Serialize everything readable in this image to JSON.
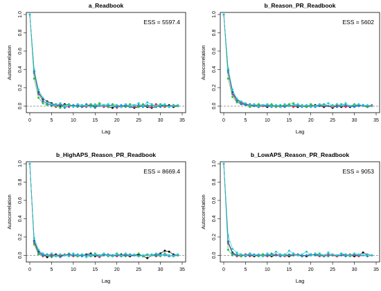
{
  "chart_data": [
    {
      "type": "line",
      "title": "a_Readbook",
      "xlabel": "Lag",
      "ylabel": "Autocorrelation",
      "annotation": "ESS = 5597.4",
      "xlim": [
        0,
        35
      ],
      "ylim": [
        -0.05,
        1.0
      ],
      "x_ticks": [
        0,
        5,
        10,
        15,
        20,
        25,
        30,
        35
      ],
      "y_ticks": [
        0.0,
        0.2,
        0.4,
        0.6,
        0.8,
        1.0
      ],
      "x": [
        0,
        1,
        2,
        3,
        4,
        5,
        6,
        7,
        8,
        9,
        10,
        11,
        12,
        13,
        14,
        15,
        16,
        17,
        18,
        19,
        20,
        21,
        22,
        23,
        24,
        25,
        26,
        27,
        28,
        29,
        30,
        31,
        32,
        33,
        34
      ],
      "series": [
        {
          "color": "#000000",
          "values": [
            1.0,
            0.38,
            0.15,
            0.08,
            0.05,
            0.03,
            0.01,
            0.0,
            0.02,
            0.01,
            0.0,
            0.01,
            -0.01,
            0.0,
            0.01,
            -0.01,
            0.0,
            0.01,
            -0.01,
            -0.02,
            0.0,
            -0.01,
            0.0,
            -0.01,
            -0.02,
            -0.01,
            0.0,
            -0.01,
            -0.02,
            -0.01,
            0.01,
            0.0,
            0.01,
            -0.01,
            0.0
          ]
        },
        {
          "color": "#e8274b",
          "values": [
            1.0,
            0.36,
            0.13,
            0.06,
            0.02,
            0.01,
            -0.01,
            0.02,
            0.0,
            -0.01,
            0.01,
            0.0,
            0.0,
            -0.01,
            0.01,
            0.01,
            0.0,
            -0.01,
            0.0,
            0.01,
            -0.02,
            0.0,
            0.01,
            0.0,
            -0.01,
            0.0,
            0.01,
            0.0,
            -0.01,
            0.02,
            0.0,
            -0.01,
            0.0,
            0.01,
            0.0
          ]
        },
        {
          "color": "#2bc03a",
          "values": [
            1.0,
            0.3,
            0.09,
            0.03,
            0.01,
            0.02,
            0.0,
            -0.02,
            0.01,
            0.02,
            0.0,
            -0.01,
            0.01,
            0.0,
            0.02,
            0.0,
            0.03,
            0.01,
            -0.01,
            0.02,
            0.01,
            0.0,
            -0.01,
            0.02,
            0.01,
            -0.01,
            0.02,
            0.0,
            0.01,
            -0.01,
            0.02,
            0.0,
            -0.01,
            0.01,
            0.0
          ]
        },
        {
          "color": "#2a7fd6",
          "values": [
            1.0,
            0.37,
            0.14,
            0.05,
            0.03,
            0.0,
            0.02,
            0.01,
            -0.02,
            0.0,
            0.01,
            0.0,
            -0.01,
            0.02,
            0.0,
            -0.02,
            0.01,
            0.0,
            0.01,
            0.0,
            -0.01,
            0.01,
            0.0,
            -0.01,
            0.0,
            0.01,
            -0.01,
            0.01,
            0.0,
            0.0,
            -0.01,
            0.01,
            0.0,
            0.0,
            0.01
          ]
        },
        {
          "color": "#22c8d8",
          "values": [
            1.0,
            0.4,
            0.18,
            0.09,
            0.04,
            0.02,
            0.01,
            0.03,
            0.0,
            0.01,
            -0.01,
            0.02,
            0.01,
            0.0,
            -0.01,
            0.02,
            0.0,
            0.01,
            0.02,
            0.0,
            0.01,
            -0.01,
            0.02,
            0.0,
            0.01,
            0.03,
            0.0,
            0.04,
            0.02,
            0.0,
            0.01,
            0.02,
            -0.01,
            0.0,
            0.01
          ]
        }
      ]
    },
    {
      "type": "line",
      "title": "b_Reason_PR_Readbook",
      "xlabel": "Lag",
      "ylabel": "Autocorrelation",
      "annotation": "ESS = 5602",
      "xlim": [
        0,
        35
      ],
      "ylim": [
        -0.05,
        1.0
      ],
      "x_ticks": [
        0,
        5,
        10,
        15,
        20,
        25,
        30,
        35
      ],
      "y_ticks": [
        0.0,
        0.2,
        0.4,
        0.6,
        0.8,
        1.0
      ],
      "x": [
        0,
        1,
        2,
        3,
        4,
        5,
        6,
        7,
        8,
        9,
        10,
        11,
        12,
        13,
        14,
        15,
        16,
        17,
        18,
        19,
        20,
        21,
        22,
        23,
        24,
        25,
        26,
        27,
        28,
        29,
        30,
        31,
        32,
        33,
        34
      ],
      "series": [
        {
          "color": "#000000",
          "values": [
            1.0,
            0.39,
            0.15,
            0.07,
            0.04,
            0.02,
            0.01,
            0.0,
            0.01,
            0.0,
            -0.01,
            0.01,
            0.0,
            -0.01,
            0.0,
            0.01,
            0.0,
            -0.01,
            0.0,
            -0.01,
            0.0,
            0.01,
            0.0,
            -0.01,
            0.0,
            -0.02,
            0.0,
            -0.01,
            0.0,
            -0.01,
            0.0,
            0.01,
            0.0,
            -0.01,
            0.0
          ]
        },
        {
          "color": "#e8274b",
          "values": [
            1.0,
            0.37,
            0.13,
            0.05,
            0.03,
            0.01,
            0.0,
            0.01,
            -0.01,
            0.0,
            0.01,
            0.0,
            -0.01,
            0.0,
            0.01,
            0.0,
            -0.01,
            0.01,
            0.0,
            0.0,
            -0.01,
            0.0,
            0.01,
            0.0,
            0.0,
            -0.01,
            0.01,
            0.0,
            -0.01,
            0.0,
            0.01,
            0.0,
            0.0,
            0.0,
            0.01
          ]
        },
        {
          "color": "#2bc03a",
          "values": [
            1.0,
            0.3,
            0.1,
            0.04,
            0.02,
            0.01,
            -0.01,
            0.0,
            0.02,
            0.01,
            0.0,
            0.02,
            -0.01,
            0.01,
            0.0,
            0.02,
            0.03,
            0.0,
            0.01,
            -0.01,
            0.02,
            0.0,
            0.01,
            0.02,
            0.0,
            0.01,
            -0.01,
            0.02,
            0.01,
            0.0,
            0.02,
            0.0,
            0.01,
            -0.01,
            0.0
          ]
        },
        {
          "color": "#2a7fd6",
          "values": [
            1.0,
            0.38,
            0.14,
            0.06,
            0.02,
            0.01,
            0.02,
            0.0,
            -0.01,
            0.01,
            0.0,
            -0.01,
            0.01,
            0.0,
            -0.01,
            0.0,
            0.01,
            0.0,
            -0.01,
            0.01,
            0.0,
            -0.01,
            0.0,
            0.01,
            0.0,
            0.0,
            -0.01,
            0.0,
            0.01,
            0.0,
            -0.01,
            0.0,
            0.01,
            0.0,
            0.0
          ]
        },
        {
          "color": "#22c8d8",
          "values": [
            1.0,
            0.41,
            0.18,
            0.08,
            0.05,
            0.03,
            0.01,
            0.02,
            0.0,
            0.01,
            0.02,
            0.0,
            0.01,
            -0.01,
            0.02,
            0.0,
            0.01,
            0.02,
            0.0,
            0.01,
            -0.01,
            0.0,
            0.02,
            0.01,
            0.03,
            0.0,
            0.02,
            0.01,
            0.03,
            0.0,
            0.01,
            0.02,
            0.0,
            0.01,
            0.0
          ]
        }
      ]
    },
    {
      "type": "line",
      "title": "b_HighAPS_Reason_PR_Readbook",
      "xlabel": "Lag",
      "ylabel": "Autocorrelation",
      "annotation": "ESS = 8669.4",
      "xlim": [
        0,
        35
      ],
      "ylim": [
        -0.05,
        1.0
      ],
      "x_ticks": [
        0,
        5,
        10,
        15,
        20,
        25,
        30,
        35
      ],
      "y_ticks": [
        0.0,
        0.2,
        0.4,
        0.6,
        0.8,
        1.0
      ],
      "x": [
        0,
        1,
        2,
        3,
        4,
        5,
        6,
        7,
        8,
        9,
        10,
        11,
        12,
        13,
        14,
        15,
        16,
        17,
        18,
        19,
        20,
        21,
        22,
        23,
        24,
        25,
        26,
        27,
        28,
        29,
        30,
        31,
        32,
        33,
        34
      ],
      "series": [
        {
          "color": "#000000",
          "values": [
            1.0,
            0.16,
            0.04,
            0.01,
            -0.02,
            0.0,
            0.01,
            -0.01,
            0.0,
            0.01,
            0.0,
            -0.01,
            0.0,
            0.01,
            0.02,
            -0.01,
            0.0,
            0.01,
            0.0,
            -0.01,
            0.0,
            0.01,
            0.0,
            -0.01,
            0.0,
            0.01,
            -0.01,
            -0.03,
            0.0,
            0.01,
            0.02,
            0.05,
            0.04,
            0.01,
            0.0
          ]
        },
        {
          "color": "#e8274b",
          "values": [
            1.0,
            0.14,
            0.02,
            -0.01,
            0.0,
            0.01,
            -0.01,
            0.0,
            0.01,
            0.0,
            -0.01,
            0.0,
            0.01,
            0.0,
            -0.01,
            0.0,
            -0.02,
            0.0,
            0.01,
            0.0,
            -0.01,
            0.0,
            0.01,
            0.0,
            0.0,
            -0.01,
            0.0,
            0.01,
            0.0,
            -0.01,
            0.0,
            0.01,
            0.0,
            -0.01,
            0.0
          ]
        },
        {
          "color": "#2bc03a",
          "values": [
            1.0,
            0.12,
            0.01,
            0.0,
            0.01,
            -0.02,
            0.0,
            0.01,
            0.0,
            0.02,
            0.0,
            -0.01,
            0.01,
            0.0,
            -0.01,
            0.02,
            0.0,
            0.01,
            -0.01,
            0.0,
            0.02,
            0.0,
            -0.01,
            0.01,
            0.0,
            0.02,
            -0.01,
            0.0,
            0.01,
            0.0,
            -0.01,
            0.02,
            0.0,
            -0.01,
            0.0
          ]
        },
        {
          "color": "#2a7fd6",
          "values": [
            1.0,
            0.15,
            0.03,
            0.0,
            0.01,
            -0.01,
            0.0,
            -0.02,
            0.0,
            0.01,
            0.0,
            0.01,
            -0.01,
            0.0,
            0.01,
            0.0,
            -0.01,
            0.0,
            0.01,
            0.0,
            0.0,
            -0.01,
            0.0,
            0.01,
            0.0,
            -0.01,
            0.0,
            0.01,
            0.0,
            0.0,
            0.01,
            0.0,
            -0.01,
            0.0,
            0.01
          ]
        },
        {
          "color": "#22c8d8",
          "values": [
            1.0,
            0.19,
            0.06,
            0.02,
            0.0,
            0.02,
            -0.01,
            0.01,
            0.0,
            -0.01,
            0.02,
            0.0,
            0.01,
            -0.02,
            0.0,
            0.01,
            0.0,
            0.02,
            0.0,
            -0.01,
            0.01,
            0.0,
            0.02,
            0.0,
            0.01,
            -0.01,
            0.0,
            0.01,
            0.0,
            0.02,
            0.0,
            0.01,
            0.0,
            -0.01,
            0.01
          ]
        }
      ]
    },
    {
      "type": "line",
      "title": "b_LowAPS_Reason_PR_Readbook",
      "xlabel": "Lag",
      "ylabel": "Autocorrelation",
      "annotation": "ESS = 9053",
      "xlim": [
        0,
        35
      ],
      "ylim": [
        -0.05,
        1.0
      ],
      "x_ticks": [
        0,
        5,
        10,
        15,
        20,
        25,
        30,
        35
      ],
      "y_ticks": [
        0.0,
        0.2,
        0.4,
        0.6,
        0.8,
        1.0
      ],
      "x": [
        0,
        1,
        2,
        3,
        4,
        5,
        6,
        7,
        8,
        9,
        10,
        11,
        12,
        13,
        14,
        15,
        16,
        17,
        18,
        19,
        20,
        21,
        22,
        23,
        24,
        25,
        26,
        27,
        28,
        29,
        30,
        31,
        32,
        33,
        34
      ],
      "series": [
        {
          "color": "#000000",
          "values": [
            1.0,
            0.15,
            0.03,
            0.0,
            -0.01,
            0.01,
            0.0,
            -0.01,
            0.0,
            0.01,
            0.0,
            -0.01,
            0.0,
            0.01,
            0.0,
            -0.01,
            0.0,
            0.01,
            0.0,
            -0.01,
            0.0,
            0.01,
            0.0,
            -0.01,
            0.0,
            0.0,
            -0.01,
            0.0,
            0.01,
            0.0,
            -0.01,
            0.0,
            0.03,
            0.01,
            0.0
          ]
        },
        {
          "color": "#e8274b",
          "values": [
            1.0,
            0.13,
            0.02,
            -0.01,
            0.0,
            0.01,
            -0.01,
            0.0,
            0.01,
            0.0,
            -0.01,
            0.0,
            0.01,
            0.0,
            -0.01,
            0.0,
            0.0,
            0.01,
            -0.01,
            0.0,
            0.01,
            0.0,
            -0.01,
            0.0,
            0.01,
            0.0,
            -0.01,
            0.0,
            0.0,
            0.01,
            0.0,
            -0.01,
            0.0,
            0.01,
            0.0
          ]
        },
        {
          "color": "#2bc03a",
          "values": [
            1.0,
            0.06,
            0.0,
            0.01,
            -0.01,
            0.0,
            0.02,
            0.0,
            -0.01,
            0.01,
            0.0,
            0.02,
            0.0,
            -0.01,
            0.01,
            0.0,
            0.02,
            0.0,
            -0.01,
            0.0,
            0.01,
            0.0,
            0.02,
            0.0,
            -0.01,
            0.01,
            0.0,
            0.02,
            0.0,
            -0.01,
            0.01,
            0.0,
            0.0,
            0.01,
            0.0
          ]
        },
        {
          "color": "#2a7fd6",
          "values": [
            1.0,
            0.14,
            0.02,
            0.0,
            0.01,
            -0.01,
            0.0,
            0.01,
            0.0,
            -0.01,
            0.0,
            0.01,
            0.0,
            -0.01,
            0.0,
            0.01,
            0.0,
            0.0,
            -0.01,
            0.0,
            0.01,
            0.0,
            0.0,
            -0.01,
            0.0,
            0.01,
            0.0,
            0.0,
            -0.01,
            0.0,
            0.01,
            0.0,
            0.0,
            -0.01,
            0.0
          ]
        },
        {
          "color": "#22c8d8",
          "values": [
            1.0,
            0.22,
            0.07,
            0.03,
            0.01,
            0.0,
            0.02,
            0.0,
            0.01,
            -0.01,
            0.02,
            0.0,
            0.04,
            0.01,
            0.0,
            0.05,
            0.02,
            0.0,
            0.01,
            0.04,
            0.0,
            0.02,
            0.01,
            0.0,
            0.03,
            0.01,
            0.0,
            0.02,
            0.01,
            0.0,
            0.02,
            0.01,
            0.0,
            0.01,
            0.0
          ]
        }
      ]
    }
  ]
}
